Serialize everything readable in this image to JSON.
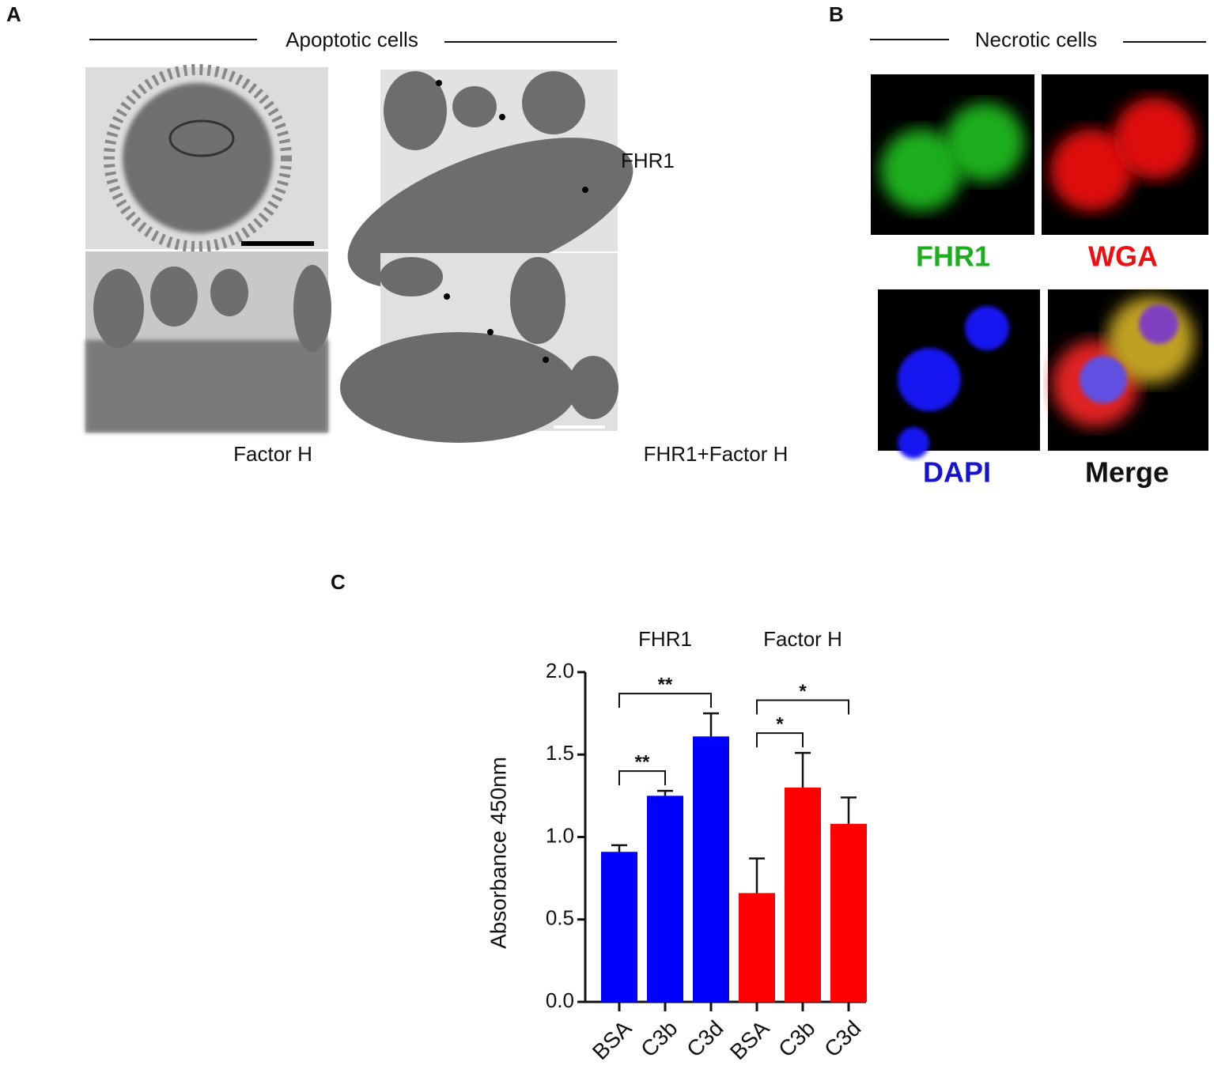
{
  "panel_a": {
    "label": "A",
    "title": "Apoptotic cells",
    "label_top_right": "FHR1",
    "label_bottom_left": "Factor H",
    "label_bottom_right": "FHR1+Factor H"
  },
  "panel_b": {
    "label": "B",
    "title": "Necrotic cells",
    "channels": [
      "FHR1",
      "WGA",
      "DAPI",
      "Merge"
    ]
  },
  "panel_c_label": "C",
  "chart_data": {
    "type": "bar",
    "ylabel": "Absorbance 450nm",
    "groups": [
      "FHR1",
      "Factor H"
    ],
    "categories": [
      "BSA",
      "C3b",
      "C3d",
      "BSA",
      "C3b",
      "C3d"
    ],
    "values": [
      0.91,
      1.25,
      1.61,
      0.66,
      1.3,
      1.08
    ],
    "errors": [
      0.04,
      0.03,
      0.14,
      0.21,
      0.21,
      0.16
    ],
    "colors": [
      "#0000ff",
      "#0000ff",
      "#0000ff",
      "#ff0000",
      "#ff0000",
      "#ff0000"
    ],
    "significance": [
      {
        "from": 0,
        "to": 1,
        "label": "**"
      },
      {
        "from": 0,
        "to": 2,
        "label": "**"
      },
      {
        "from": 3,
        "to": 4,
        "label": "*"
      },
      {
        "from": 3,
        "to": 5,
        "label": "*"
      }
    ],
    "ylim": [
      0,
      2
    ],
    "yticks": [
      {
        "value": 0,
        "label": "0.0"
      },
      0.5,
      {
        "value": 1,
        "label": "1.0"
      },
      1.5,
      {
        "value": 2,
        "label": "2.0"
      }
    ]
  }
}
